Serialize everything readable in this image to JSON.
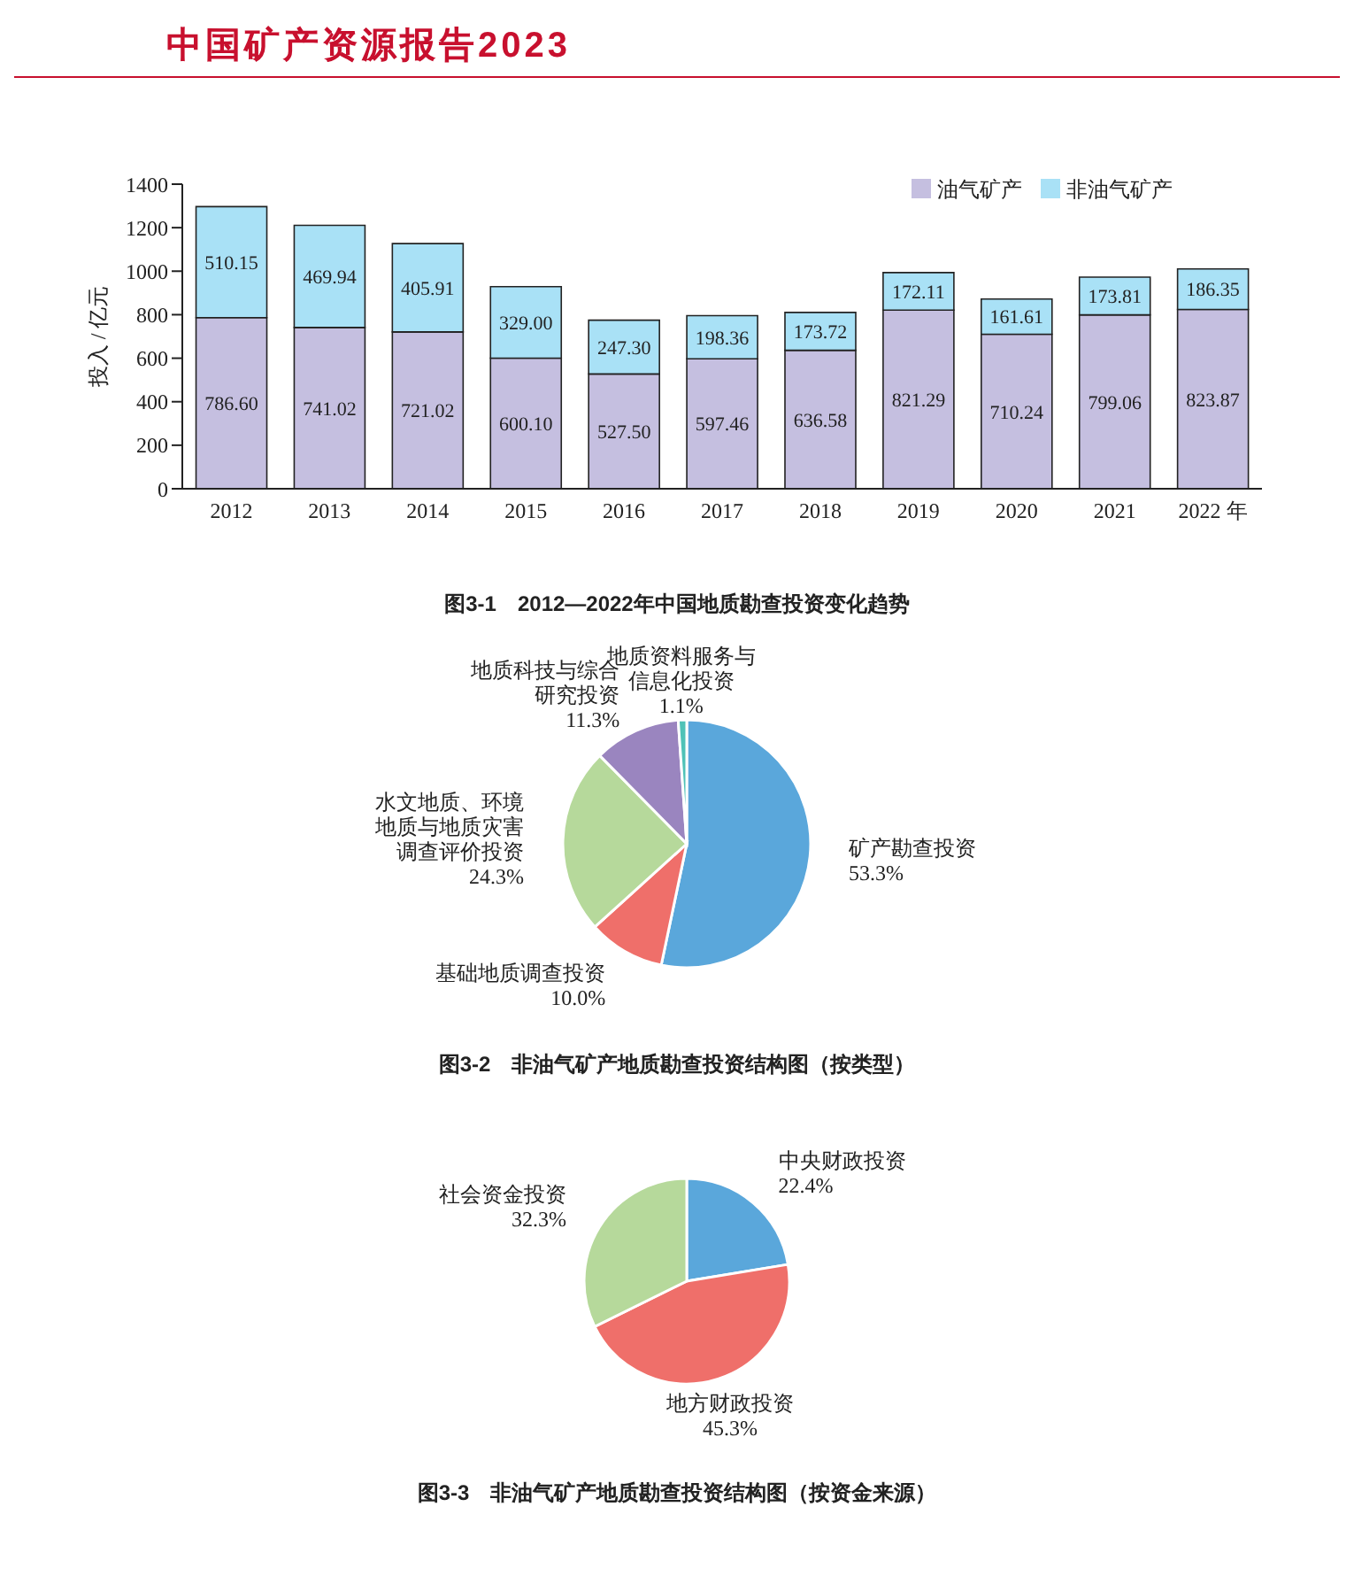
{
  "chart_data": [
    {
      "type": "bar",
      "title": "图3-1　2012—2022年中国地质勘查投资变化趋势",
      "annotations": [
        "中国矿产资源报告2023"
      ],
      "ylabel": "投入 / 亿元",
      "categories": [
        "2012",
        "2013",
        "2014",
        "2015",
        "2016",
        "2017",
        "2018",
        "2019",
        "2020",
        "2021",
        "2022 年"
      ],
      "stacked": true,
      "ylim": [
        0,
        1400
      ],
      "yticks": [
        0,
        200,
        400,
        600,
        800,
        1000,
        1200,
        1400
      ],
      "grid": false,
      "legend": "top right",
      "series": [
        {
          "name": "油气矿产",
          "color": "#c5bfe0",
          "values": [
            786.6,
            741.02,
            721.02,
            600.1,
            527.5,
            597.46,
            636.58,
            821.29,
            710.24,
            799.06,
            823.87
          ],
          "value_labels": [
            "786.60",
            "741.02",
            "721.02",
            "600.10",
            "527.50",
            "597.46",
            "636.58",
            "821.29",
            "710.24",
            "799.06",
            "823.87"
          ]
        },
        {
          "name": "非油气矿产",
          "color": "#a9e1f6",
          "values": [
            510.15,
            469.94,
            405.91,
            329.0,
            247.3,
            198.36,
            173.72,
            172.11,
            161.61,
            173.81,
            186.35
          ],
          "value_labels": [
            "510.15",
            "469.94",
            "405.91",
            "329.00",
            "247.30",
            "198.36",
            "173.72",
            "172.11",
            "161.61",
            "173.81",
            "186.35"
          ]
        }
      ]
    },
    {
      "type": "pie",
      "title": "图3-2　非油气矿产地质勘查投资结构图（按类型）",
      "categories": [
        "矿产勘查投资",
        "基础地质调查投资",
        "水文地质、环境地质与地质灾害调查评价投资",
        "地质科技与综合研究投资",
        "地质资料服务与信息化投资"
      ],
      "values": [
        53.3,
        10.0,
        24.3,
        11.3,
        1.1
      ],
      "colors": [
        "#5aa7db",
        "#ef6f6a",
        "#b6d99b",
        "#9a85bf",
        "#4fc2b7"
      ],
      "value_labels": [
        "53.3%",
        "10.0%",
        "24.3%",
        "11.3%",
        "1.1%"
      ],
      "legend": false
    },
    {
      "type": "pie",
      "title": "图3-3　非油气矿产地质勘查投资结构图（按资金来源）",
      "categories": [
        "中央财政投资",
        "地方财政投资",
        "社会资金投资"
      ],
      "values": [
        22.4,
        45.3,
        32.3
      ],
      "colors": [
        "#5aa7db",
        "#ef6f6a",
        "#b6d99b"
      ],
      "value_labels": [
        "22.4%",
        "45.3%",
        "32.3%"
      ],
      "legend": false
    }
  ]
}
